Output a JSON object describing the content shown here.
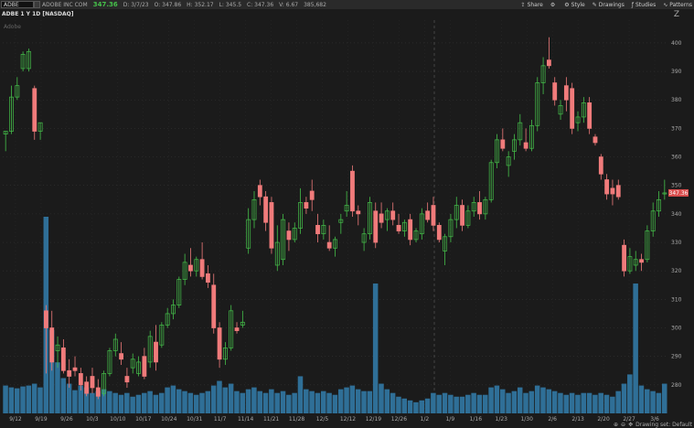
{
  "header": {
    "symbol": "ADBE",
    "company": "ADOBE INC COM",
    "price": "347.36",
    "date": "D: 3/7/23",
    "open": "O: 347.86",
    "high": "H: 352.17",
    "low": "L: 345.5",
    "close": "C: 347.36",
    "volume": "V: 6.67",
    "extra": "385,682"
  },
  "toolbar": {
    "share": "Share",
    "style": "Style",
    "drawings": "Drawings",
    "studies": "Studies",
    "patterns": "Patterns"
  },
  "chart_title": "ADBE 1 Y 1D [NASDAQ]",
  "logo": "Adobe",
  "price_tag": "347.36",
  "status": {
    "drawing_set": "Drawing set: Default"
  },
  "colors": {
    "up": "#45c04a",
    "down": "#f07b7b",
    "volume": "#2f6f97",
    "bg": "#1b1b1b"
  },
  "chart_data": {
    "type": "candlestick",
    "y_ticks": [
      280,
      290,
      300,
      310,
      320,
      330,
      340,
      350,
      360,
      370,
      380,
      390,
      400
    ],
    "x_ticks": [
      "9/12",
      "9/19",
      "9/26",
      "10/3",
      "10/10",
      "10/17",
      "10/24",
      "10/31",
      "11/7",
      "11/14",
      "11/21",
      "11/28",
      "12/5",
      "12/12",
      "12/19",
      "12/26",
      "1/2",
      "1/9",
      "1/16",
      "1/23",
      "1/30",
      "2/6",
      "2/13",
      "2/20",
      "2/27",
      "3/6"
    ],
    "ylim": [
      270,
      408
    ],
    "candles": [
      {
        "o": 368,
        "h": 369,
        "l": 362,
        "c": 369,
        "v": 30
      },
      {
        "o": 369,
        "h": 385,
        "l": 368,
        "c": 381,
        "v": 28
      },
      {
        "o": 381,
        "h": 388,
        "l": 380,
        "c": 385,
        "v": 27
      },
      {
        "o": 391,
        "h": 397,
        "l": 390,
        "c": 396,
        "v": 29
      },
      {
        "o": 391,
        "h": 398,
        "l": 390,
        "c": 397,
        "v": 30
      },
      {
        "o": 384,
        "h": 385,
        "l": 366,
        "c": 369,
        "v": 32
      },
      {
        "o": 369,
        "h": 372,
        "l": 366,
        "c": 372,
        "v": 28
      },
      {
        "o": 306,
        "h": 308,
        "l": 284,
        "c": 300,
        "v": 212
      },
      {
        "o": 300,
        "h": 306,
        "l": 285,
        "c": 288,
        "v": 90
      },
      {
        "o": 292,
        "h": 297,
        "l": 286,
        "c": 294,
        "v": 55
      },
      {
        "o": 293,
        "h": 296,
        "l": 284,
        "c": 285,
        "v": 38
      },
      {
        "o": 285,
        "h": 289,
        "l": 279,
        "c": 283,
        "v": 32
      },
      {
        "o": 286,
        "h": 290,
        "l": 283,
        "c": 285,
        "v": 25
      },
      {
        "o": 284,
        "h": 286,
        "l": 278,
        "c": 280,
        "v": 30
      },
      {
        "o": 281,
        "h": 283,
        "l": 276,
        "c": 277,
        "v": 28
      },
      {
        "o": 283,
        "h": 286,
        "l": 277,
        "c": 279,
        "v": 22
      },
      {
        "o": 279,
        "h": 282,
        "l": 275,
        "c": 276,
        "v": 24
      },
      {
        "o": 277,
        "h": 285,
        "l": 276,
        "c": 284,
        "v": 26
      },
      {
        "o": 284,
        "h": 293,
        "l": 283,
        "c": 292,
        "v": 24
      },
      {
        "o": 292,
        "h": 298,
        "l": 290,
        "c": 296,
        "v": 22
      },
      {
        "o": 291,
        "h": 295,
        "l": 287,
        "c": 289,
        "v": 20
      },
      {
        "o": 283,
        "h": 286,
        "l": 279,
        "c": 281,
        "v": 22
      },
      {
        "o": 286,
        "h": 291,
        "l": 284,
        "c": 289,
        "v": 18
      },
      {
        "o": 284,
        "h": 290,
        "l": 283,
        "c": 288,
        "v": 20
      },
      {
        "o": 290,
        "h": 293,
        "l": 282,
        "c": 283,
        "v": 22
      },
      {
        "o": 288,
        "h": 299,
        "l": 286,
        "c": 297,
        "v": 24
      },
      {
        "o": 295,
        "h": 301,
        "l": 285,
        "c": 288,
        "v": 20
      },
      {
        "o": 294,
        "h": 302,
        "l": 293,
        "c": 301,
        "v": 22
      },
      {
        "o": 301,
        "h": 307,
        "l": 300,
        "c": 305,
        "v": 28
      },
      {
        "o": 305,
        "h": 310,
        "l": 303,
        "c": 308,
        "v": 30
      },
      {
        "o": 308,
        "h": 318,
        "l": 307,
        "c": 317,
        "v": 26
      },
      {
        "o": 317,
        "h": 326,
        "l": 315,
        "c": 323,
        "v": 24
      },
      {
        "o": 322,
        "h": 328,
        "l": 318,
        "c": 320,
        "v": 22
      },
      {
        "o": 320,
        "h": 325,
        "l": 318,
        "c": 324,
        "v": 20
      },
      {
        "o": 324,
        "h": 330,
        "l": 317,
        "c": 318,
        "v": 22
      },
      {
        "o": 319,
        "h": 322,
        "l": 314,
        "c": 316,
        "v": 24
      },
      {
        "o": 315,
        "h": 319,
        "l": 298,
        "c": 300,
        "v": 30
      },
      {
        "o": 300,
        "h": 302,
        "l": 286,
        "c": 289,
        "v": 35
      },
      {
        "o": 289,
        "h": 295,
        "l": 287,
        "c": 293,
        "v": 28
      },
      {
        "o": 293,
        "h": 308,
        "l": 292,
        "c": 306,
        "v": 32
      },
      {
        "o": 300,
        "h": 302,
        "l": 298,
        "c": 299,
        "v": 24
      },
      {
        "o": 301,
        "h": 306,
        "l": 300,
        "c": 302,
        "v": 22
      },
      {
        "o": 328,
        "h": 342,
        "l": 326,
        "c": 338,
        "v": 26
      },
      {
        "o": 338,
        "h": 348,
        "l": 335,
        "c": 345,
        "v": 28
      },
      {
        "o": 350,
        "h": 352,
        "l": 343,
        "c": 346,
        "v": 24
      },
      {
        "o": 346,
        "h": 348,
        "l": 334,
        "c": 337,
        "v": 22
      },
      {
        "o": 344,
        "h": 346,
        "l": 326,
        "c": 328,
        "v": 26
      },
      {
        "o": 322,
        "h": 336,
        "l": 320,
        "c": 330,
        "v": 22
      },
      {
        "o": 324,
        "h": 340,
        "l": 322,
        "c": 338,
        "v": 24
      },
      {
        "o": 334,
        "h": 337,
        "l": 327,
        "c": 331,
        "v": 20
      },
      {
        "o": 331,
        "h": 337,
        "l": 330,
        "c": 335,
        "v": 22
      },
      {
        "o": 335,
        "h": 349,
        "l": 333,
        "c": 344,
        "v": 40
      },
      {
        "o": 344,
        "h": 346,
        "l": 340,
        "c": 342,
        "v": 26
      },
      {
        "o": 348,
        "h": 352,
        "l": 341,
        "c": 345,
        "v": 24
      },
      {
        "o": 336,
        "h": 340,
        "l": 330,
        "c": 333,
        "v": 22
      },
      {
        "o": 333,
        "h": 338,
        "l": 331,
        "c": 336,
        "v": 24
      },
      {
        "o": 330,
        "h": 336,
        "l": 327,
        "c": 328,
        "v": 22
      },
      {
        "o": 328,
        "h": 332,
        "l": 325,
        "c": 331,
        "v": 20
      },
      {
        "o": 337,
        "h": 340,
        "l": 333,
        "c": 338,
        "v": 26
      },
      {
        "o": 341,
        "h": 348,
        "l": 339,
        "c": 343,
        "v": 28
      },
      {
        "o": 355,
        "h": 357,
        "l": 339,
        "c": 341,
        "v": 30
      },
      {
        "o": 341,
        "h": 343,
        "l": 336,
        "c": 340,
        "v": 26
      },
      {
        "o": 330,
        "h": 335,
        "l": 327,
        "c": 333,
        "v": 24
      },
      {
        "o": 333,
        "h": 346,
        "l": 331,
        "c": 344,
        "v": 24
      },
      {
        "o": 341,
        "h": 344,
        "l": 328,
        "c": 330,
        "v": 140
      },
      {
        "o": 340,
        "h": 344,
        "l": 335,
        "c": 337,
        "v": 32
      },
      {
        "o": 338,
        "h": 342,
        "l": 334,
        "c": 341,
        "v": 26
      },
      {
        "o": 341,
        "h": 344,
        "l": 336,
        "c": 338,
        "v": 22
      },
      {
        "o": 336,
        "h": 340,
        "l": 333,
        "c": 334,
        "v": 18
      },
      {
        "o": 334,
        "h": 338,
        "l": 332,
        "c": 337,
        "v": 16
      },
      {
        "o": 338,
        "h": 340,
        "l": 329,
        "c": 331,
        "v": 14
      },
      {
        "o": 331,
        "h": 335,
        "l": 330,
        "c": 334,
        "v": 12
      },
      {
        "o": 333,
        "h": 342,
        "l": 331,
        "c": 340,
        "v": 14
      },
      {
        "o": 341,
        "h": 344,
        "l": 337,
        "c": 338,
        "v": 16
      },
      {
        "o": 343,
        "h": 346,
        "l": 334,
        "c": 336,
        "v": 22
      },
      {
        "o": 336,
        "h": 337,
        "l": 330,
        "c": 331,
        "v": 20
      },
      {
        "o": 327,
        "h": 333,
        "l": 322,
        "c": 332,
        "v": 22
      },
      {
        "o": 332,
        "h": 340,
        "l": 330,
        "c": 338,
        "v": 20
      },
      {
        "o": 338,
        "h": 346,
        "l": 335,
        "c": 343,
        "v": 18
      },
      {
        "o": 343,
        "h": 345,
        "l": 334,
        "c": 336,
        "v": 18
      },
      {
        "o": 336,
        "h": 343,
        "l": 335,
        "c": 341,
        "v": 20
      },
      {
        "o": 341,
        "h": 346,
        "l": 339,
        "c": 344,
        "v": 22
      },
      {
        "o": 344,
        "h": 348,
        "l": 338,
        "c": 340,
        "v": 20
      },
      {
        "o": 340,
        "h": 346,
        "l": 338,
        "c": 345,
        "v": 20
      },
      {
        "o": 345,
        "h": 359,
        "l": 344,
        "c": 358,
        "v": 28
      },
      {
        "o": 358,
        "h": 368,
        "l": 356,
        "c": 366,
        "v": 30
      },
      {
        "o": 366,
        "h": 370,
        "l": 362,
        "c": 363,
        "v": 26
      },
      {
        "o": 357,
        "h": 362,
        "l": 353,
        "c": 360,
        "v": 22
      },
      {
        "o": 362,
        "h": 368,
        "l": 359,
        "c": 366,
        "v": 24
      },
      {
        "o": 366,
        "h": 375,
        "l": 364,
        "c": 372,
        "v": 28
      },
      {
        "o": 365,
        "h": 370,
        "l": 362,
        "c": 363,
        "v": 22
      },
      {
        "o": 363,
        "h": 373,
        "l": 362,
        "c": 371,
        "v": 24
      },
      {
        "o": 371,
        "h": 388,
        "l": 369,
        "c": 386,
        "v": 30
      },
      {
        "o": 386,
        "h": 395,
        "l": 382,
        "c": 392,
        "v": 28
      },
      {
        "o": 394,
        "h": 402,
        "l": 391,
        "c": 392,
        "v": 26
      },
      {
        "o": 386,
        "h": 388,
        "l": 378,
        "c": 380,
        "v": 24
      },
      {
        "o": 375,
        "h": 380,
        "l": 373,
        "c": 378,
        "v": 22
      },
      {
        "o": 385,
        "h": 388,
        "l": 376,
        "c": 380,
        "v": 20
      },
      {
        "o": 384,
        "h": 386,
        "l": 368,
        "c": 370,
        "v": 22
      },
      {
        "o": 372,
        "h": 376,
        "l": 369,
        "c": 374,
        "v": 20
      },
      {
        "o": 374,
        "h": 381,
        "l": 372,
        "c": 379,
        "v": 22
      },
      {
        "o": 379,
        "h": 381,
        "l": 368,
        "c": 370,
        "v": 22
      },
      {
        "o": 367,
        "h": 368,
        "l": 364,
        "c": 365,
        "v": 20
      },
      {
        "o": 360,
        "h": 361,
        "l": 352,
        "c": 354,
        "v": 22
      },
      {
        "o": 352,
        "h": 354,
        "l": 345,
        "c": 347,
        "v": 20
      },
      {
        "o": 349,
        "h": 352,
        "l": 343,
        "c": 347,
        "v": 18
      },
      {
        "o": 350,
        "h": 352,
        "l": 345,
        "c": 346,
        "v": 24
      },
      {
        "o": 329,
        "h": 331,
        "l": 318,
        "c": 320,
        "v": 32
      },
      {
        "o": 320,
        "h": 328,
        "l": 319,
        "c": 325,
        "v": 42
      },
      {
        "o": 322,
        "h": 327,
        "l": 320,
        "c": 324,
        "v": 140
      },
      {
        "o": 324,
        "h": 326,
        "l": 320,
        "c": 323,
        "v": 30
      },
      {
        "o": 324,
        "h": 336,
        "l": 323,
        "c": 334,
        "v": 26
      },
      {
        "o": 334,
        "h": 344,
        "l": 332,
        "c": 341,
        "v": 24
      },
      {
        "o": 341,
        "h": 348,
        "l": 339,
        "c": 345,
        "v": 22
      },
      {
        "o": 347,
        "h": 352,
        "l": 345,
        "c": 347.36,
        "v": 32
      }
    ]
  }
}
